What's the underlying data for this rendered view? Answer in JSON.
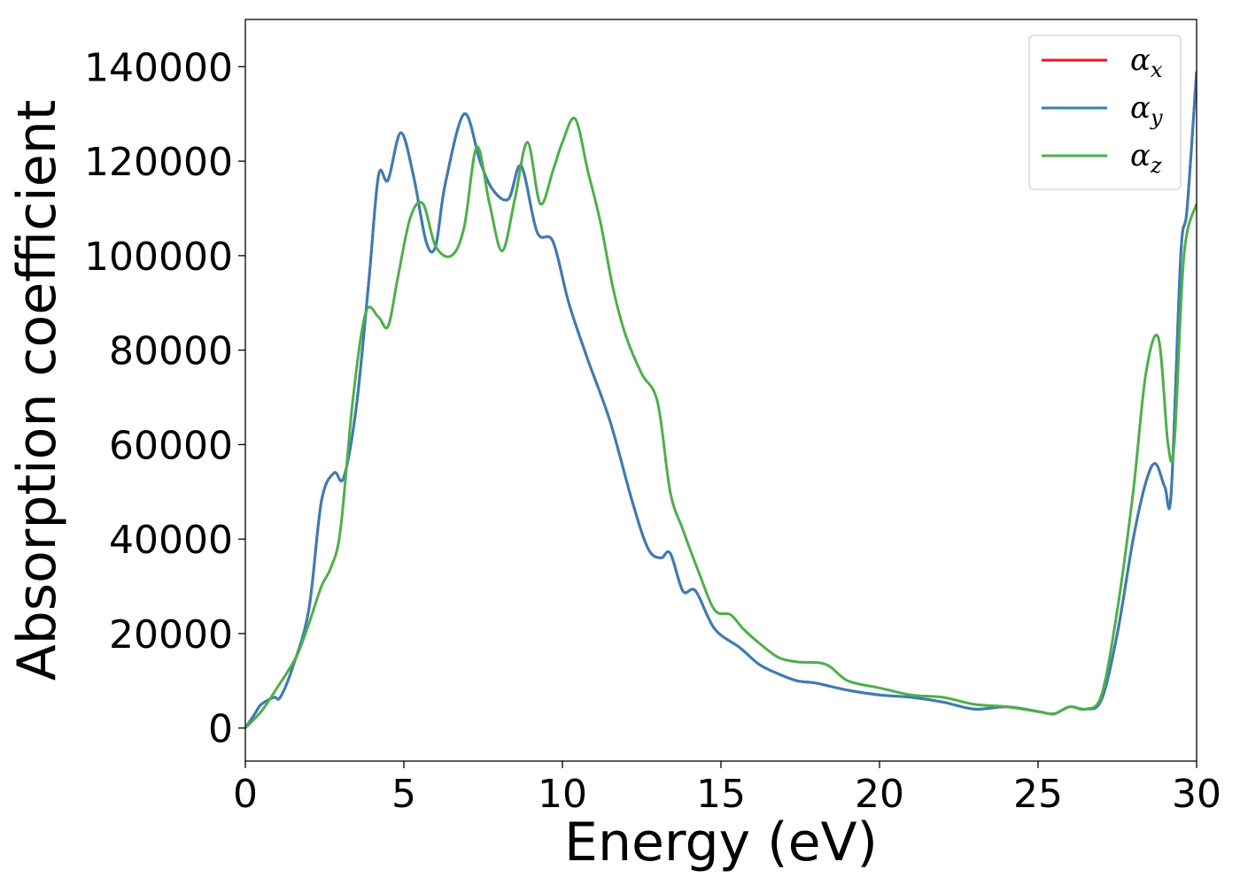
{
  "chart_data": {
    "type": "line",
    "title": "",
    "xlabel": "Energy (eV)",
    "ylabel": "Absorption coefficient",
    "xlim": [
      0,
      30
    ],
    "ylim": [
      -7000,
      150000
    ],
    "xticks": [
      0,
      5,
      10,
      15,
      20,
      25,
      30
    ],
    "xtick_labels": [
      "0",
      "5",
      "10",
      "15",
      "20",
      "25",
      "30"
    ],
    "yticks": [
      0,
      20000,
      40000,
      60000,
      80000,
      100000,
      120000,
      140000
    ],
    "ytick_labels": [
      "0",
      "20000",
      "40000",
      "60000",
      "80000",
      "100000",
      "120000",
      "140000"
    ],
    "grid": false,
    "legend_position": "top-right",
    "series": [
      {
        "name": "αx",
        "symbol": "α",
        "subscript": "x",
        "color": "#e41a1c",
        "x": [
          0,
          0.3,
          0.5,
          0.9,
          1.1,
          1.5,
          2.0,
          2.4,
          2.8,
          3.1,
          3.5,
          3.9,
          4.2,
          4.5,
          4.9,
          5.3,
          5.7,
          6.0,
          6.3,
          6.9,
          7.4,
          7.8,
          8.3,
          8.7,
          9.2,
          9.7,
          10.2,
          10.8,
          11.5,
          12.2,
          12.7,
          13.1,
          13.4,
          13.8,
          14.2,
          14.8,
          15.6,
          16.2,
          16.8,
          17.4,
          18.0,
          19.0,
          20.0,
          21.0,
          22.0,
          23.0,
          24.0,
          25.0,
          25.5,
          26.0,
          26.5,
          27.0,
          27.5,
          28.0,
          28.4,
          28.7,
          29.0,
          29.2,
          29.5,
          29.7,
          30.0
        ],
        "values": [
          0,
          3000,
          5000,
          6500,
          6500,
          13000,
          25000,
          48000,
          54000,
          53000,
          68000,
          95000,
          117000,
          116000,
          126000,
          117000,
          103000,
          102000,
          115000,
          130000,
          120000,
          114000,
          112000,
          119000,
          105000,
          103000,
          90000,
          78000,
          65000,
          48000,
          38000,
          36000,
          37000,
          29000,
          29000,
          21000,
          17000,
          13500,
          11500,
          10000,
          9500,
          8000,
          7000,
          6500,
          5500,
          4000,
          4500,
          3500,
          3000,
          4500,
          4000,
          6000,
          20000,
          40000,
          52000,
          56000,
          51000,
          50000,
          100000,
          110000,
          139000
        ]
      },
      {
        "name": "αy",
        "symbol": "α",
        "subscript": "y",
        "color": "#377eb8",
        "x": [
          0,
          0.3,
          0.5,
          0.9,
          1.1,
          1.5,
          2.0,
          2.4,
          2.8,
          3.1,
          3.5,
          3.9,
          4.2,
          4.5,
          4.9,
          5.3,
          5.7,
          6.0,
          6.3,
          6.9,
          7.4,
          7.8,
          8.3,
          8.7,
          9.2,
          9.7,
          10.2,
          10.8,
          11.5,
          12.2,
          12.7,
          13.1,
          13.4,
          13.8,
          14.2,
          14.8,
          15.6,
          16.2,
          16.8,
          17.4,
          18.0,
          19.0,
          20.0,
          21.0,
          22.0,
          23.0,
          24.0,
          25.0,
          25.5,
          26.0,
          26.5,
          27.0,
          27.5,
          28.0,
          28.4,
          28.7,
          29.0,
          29.2,
          29.5,
          29.7,
          30.0
        ],
        "values": [
          0,
          3000,
          5000,
          6500,
          6500,
          13000,
          25000,
          48000,
          54000,
          53000,
          68000,
          95000,
          117000,
          116000,
          126000,
          117000,
          103000,
          102000,
          115000,
          130000,
          120000,
          114000,
          112000,
          119000,
          105000,
          103000,
          90000,
          78000,
          65000,
          48000,
          38000,
          36000,
          37000,
          29000,
          29000,
          21000,
          17000,
          13500,
          11500,
          10000,
          9500,
          8000,
          7000,
          6500,
          5500,
          4000,
          4500,
          3500,
          3000,
          4500,
          4000,
          6000,
          20000,
          40000,
          52000,
          56000,
          51000,
          50000,
          100000,
          110000,
          139000
        ]
      },
      {
        "name": "αz",
        "symbol": "α",
        "subscript": "z",
        "color": "#4daf4a",
        "x": [
          0,
          0.5,
          1.0,
          1.6,
          2.0,
          2.4,
          2.7,
          3.0,
          3.4,
          3.8,
          4.2,
          4.5,
          4.8,
          5.2,
          5.6,
          6.0,
          6.5,
          6.9,
          7.3,
          7.7,
          8.1,
          8.5,
          8.9,
          9.3,
          9.7,
          10.0,
          10.4,
          10.8,
          11.2,
          11.6,
          12.0,
          12.5,
          13.0,
          13.4,
          13.8,
          14.3,
          14.8,
          15.3,
          15.7,
          16.2,
          16.8,
          17.4,
          18.3,
          19.0,
          20.0,
          21.0,
          22.0,
          23.0,
          24.0,
          25.0,
          25.5,
          26.0,
          26.5,
          27.0,
          27.5,
          28.0,
          28.4,
          28.8,
          29.1,
          29.3,
          29.6,
          30.0
        ],
        "values": [
          0,
          3500,
          8500,
          15000,
          22000,
          30000,
          34000,
          42000,
          70000,
          88000,
          87000,
          85000,
          95000,
          108000,
          111000,
          102000,
          100000,
          106000,
          123000,
          111000,
          101000,
          112000,
          124000,
          111000,
          118000,
          124000,
          129000,
          118000,
          107000,
          93000,
          83000,
          75000,
          69000,
          50000,
          42000,
          33000,
          25000,
          24000,
          21000,
          18000,
          15000,
          14000,
          13500,
          10000,
          8500,
          7000,
          6500,
          5000,
          4500,
          3500,
          3000,
          4500,
          4000,
          7000,
          25000,
          50000,
          75000,
          82500,
          60000,
          60500,
          100000,
          111000
        ]
      }
    ]
  }
}
